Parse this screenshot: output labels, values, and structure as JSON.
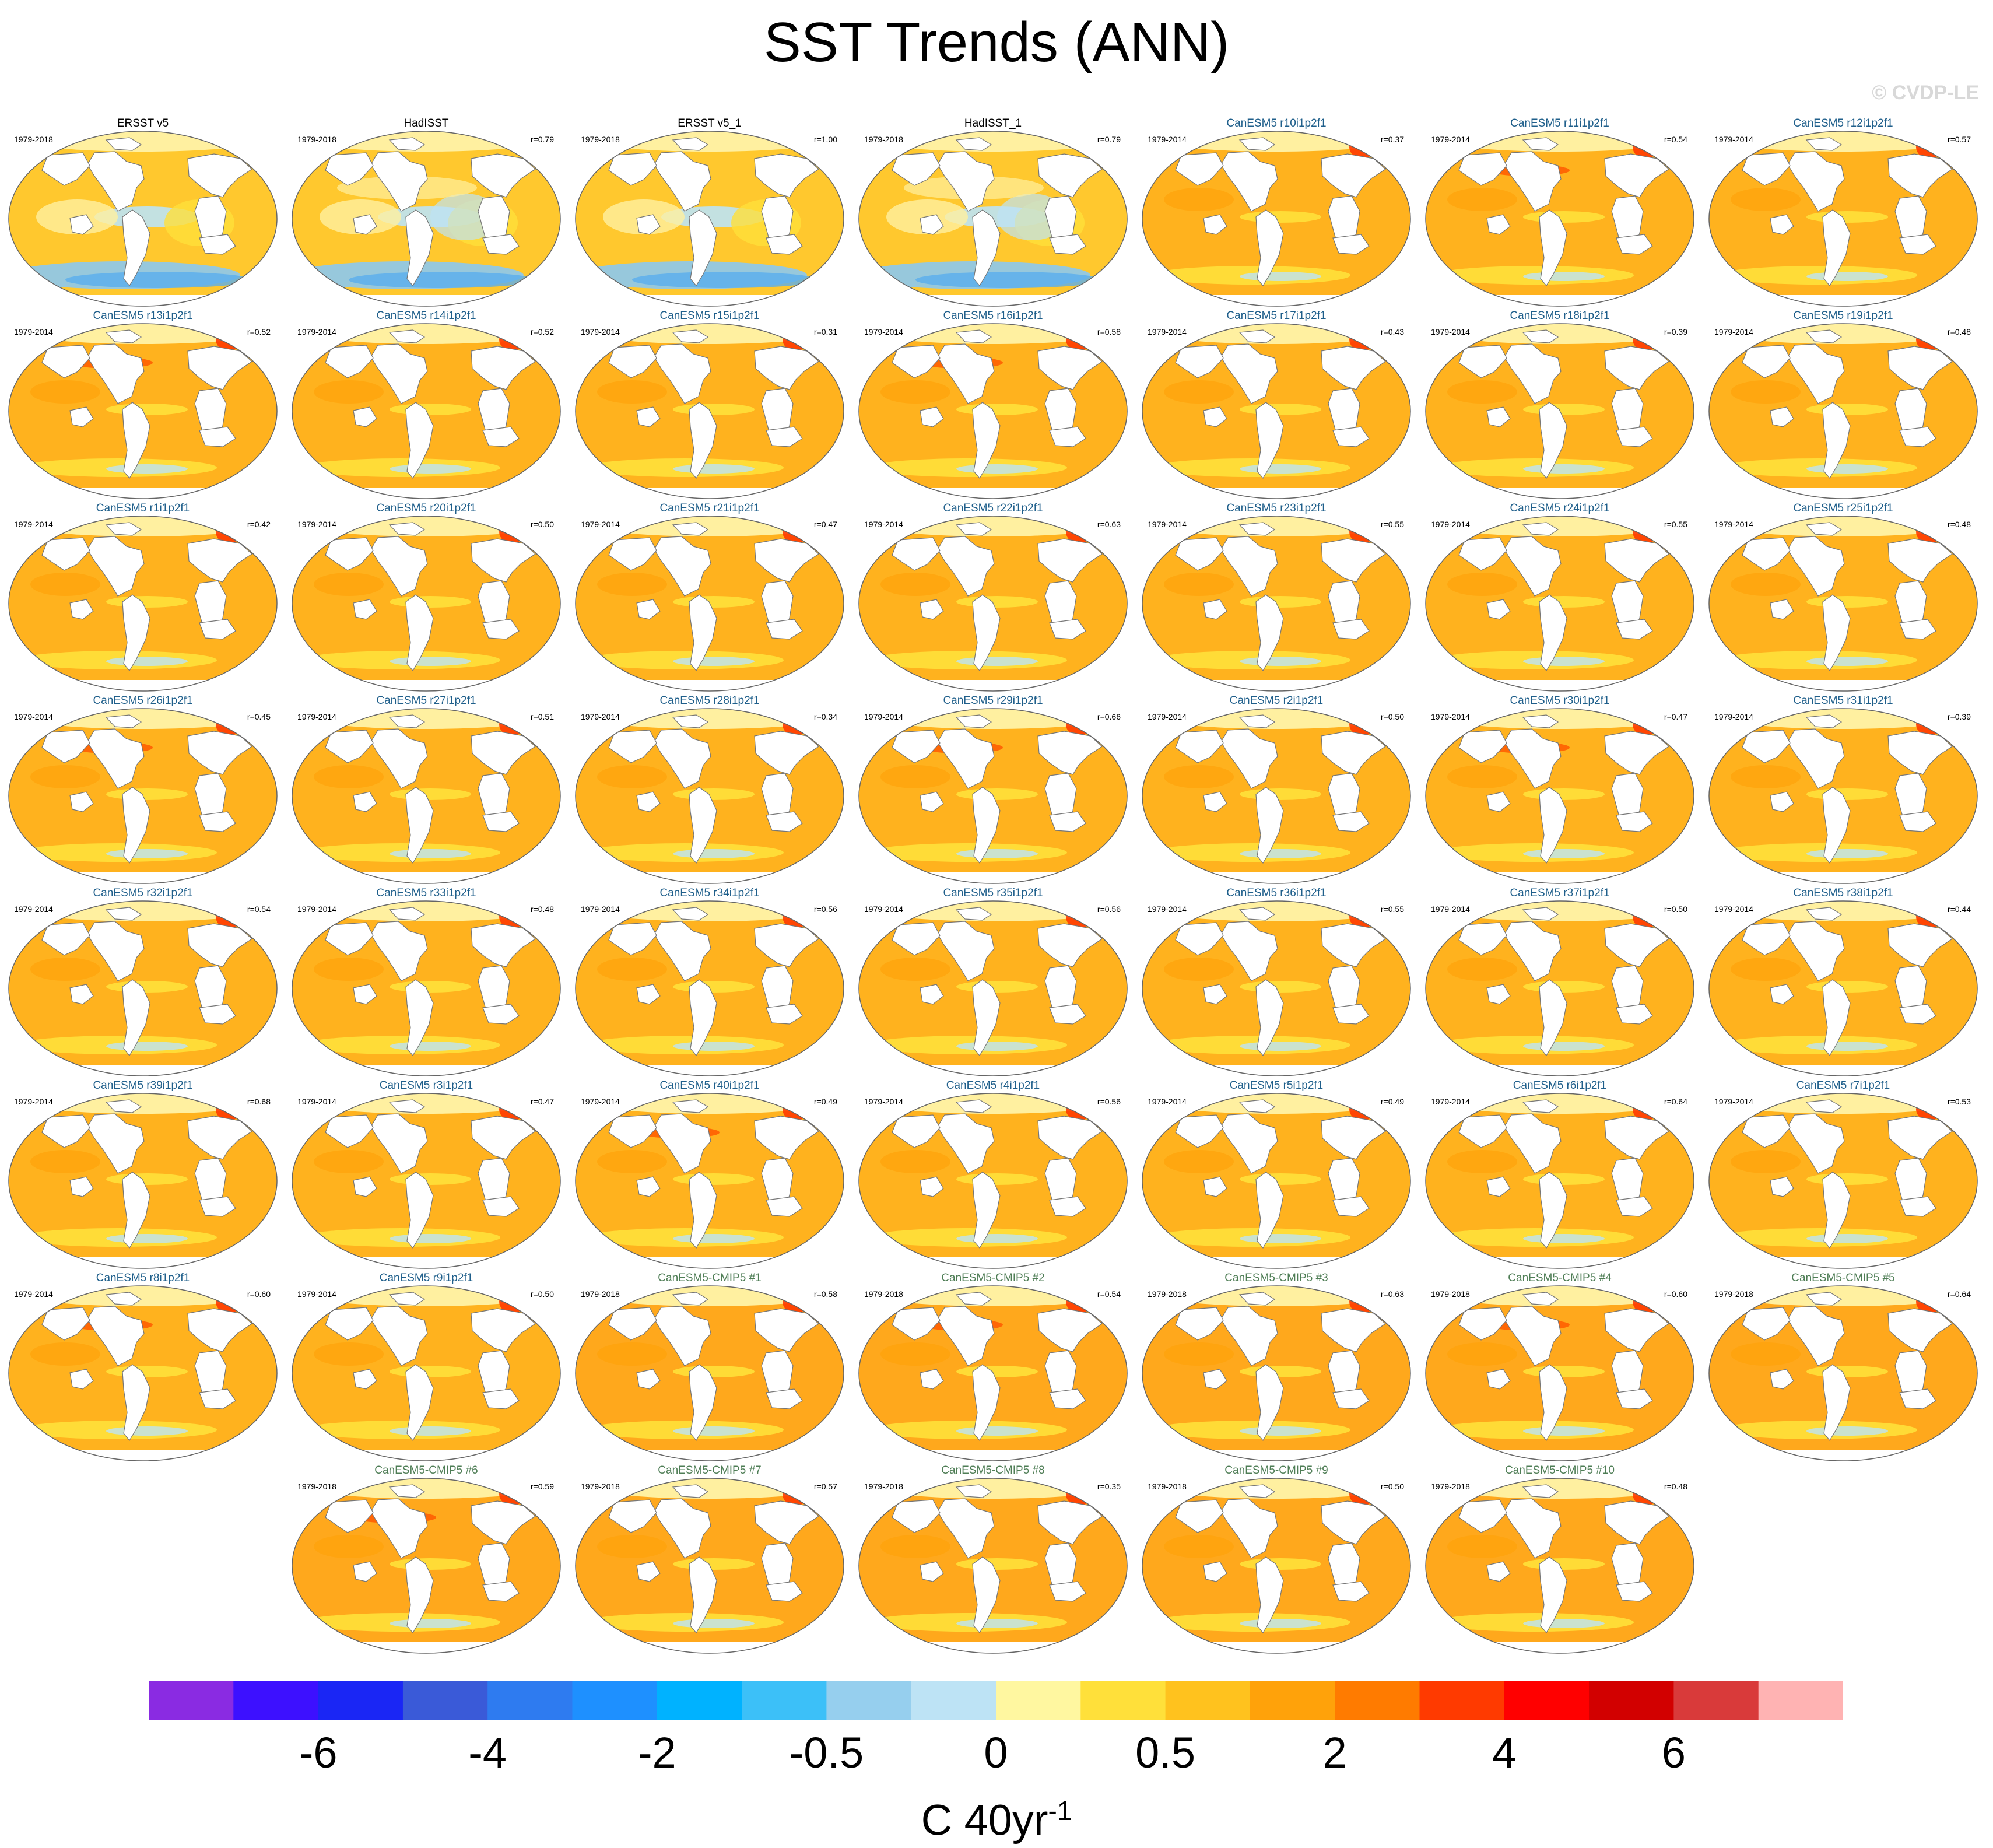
{
  "title": "SST Trends (ANN)",
  "watermark": "© CVDP-LE",
  "panels": [
    {
      "label": "ERSST v5",
      "years": "1979-2018",
      "corr": "",
      "kind": "obs",
      "pattern": "obs"
    },
    {
      "label": "HadISST",
      "years": "1979-2018",
      "corr": "r=0.79",
      "kind": "obs",
      "pattern": "obs2"
    },
    {
      "label": "ERSST v5_1",
      "years": "1979-2018",
      "corr": "r=1.00",
      "kind": "obs",
      "pattern": "obs"
    },
    {
      "label": "HadISST_1",
      "years": "1979-2018",
      "corr": "r=0.79",
      "kind": "obs",
      "pattern": "obs2"
    },
    {
      "label": "CanESM5 r10i1p2f1",
      "years": "1979-2014",
      "corr": "r=0.37",
      "kind": "model",
      "pattern": "model"
    },
    {
      "label": "CanESM5 r11i1p2f1",
      "years": "1979-2014",
      "corr": "r=0.54",
      "kind": "model",
      "pattern": "model2"
    },
    {
      "label": "CanESM5 r12i1p2f1",
      "years": "1979-2014",
      "corr": "r=0.57",
      "kind": "model",
      "pattern": "model"
    },
    {
      "label": "CanESM5 r13i1p2f1",
      "years": "1979-2014",
      "corr": "r=0.52",
      "kind": "model",
      "pattern": "model2"
    },
    {
      "label": "CanESM5 r14i1p2f1",
      "years": "1979-2014",
      "corr": "r=0.52",
      "kind": "model",
      "pattern": "model"
    },
    {
      "label": "CanESM5 r15i1p2f1",
      "years": "1979-2014",
      "corr": "r=0.31",
      "kind": "model",
      "pattern": "model"
    },
    {
      "label": "CanESM5 r16i1p2f1",
      "years": "1979-2014",
      "corr": "r=0.58",
      "kind": "model",
      "pattern": "model2"
    },
    {
      "label": "CanESM5 r17i1p2f1",
      "years": "1979-2014",
      "corr": "r=0.43",
      "kind": "model",
      "pattern": "model"
    },
    {
      "label": "CanESM5 r18i1p2f1",
      "years": "1979-2014",
      "corr": "r=0.39",
      "kind": "model",
      "pattern": "model"
    },
    {
      "label": "CanESM5 r19i1p2f1",
      "years": "1979-2014",
      "corr": "r=0.48",
      "kind": "model",
      "pattern": "model"
    },
    {
      "label": "CanESM5 r1i1p2f1",
      "years": "1979-2014",
      "corr": "r=0.42",
      "kind": "model",
      "pattern": "model"
    },
    {
      "label": "CanESM5 r20i1p2f1",
      "years": "1979-2014",
      "corr": "r=0.50",
      "kind": "model",
      "pattern": "model"
    },
    {
      "label": "CanESM5 r21i1p2f1",
      "years": "1979-2014",
      "corr": "r=0.47",
      "kind": "model",
      "pattern": "model"
    },
    {
      "label": "CanESM5 r22i1p2f1",
      "years": "1979-2014",
      "corr": "r=0.63",
      "kind": "model",
      "pattern": "model"
    },
    {
      "label": "CanESM5 r23i1p2f1",
      "years": "1979-2014",
      "corr": "r=0.55",
      "kind": "model",
      "pattern": "model"
    },
    {
      "label": "CanESM5 r24i1p2f1",
      "years": "1979-2014",
      "corr": "r=0.55",
      "kind": "model",
      "pattern": "model"
    },
    {
      "label": "CanESM5 r25i1p2f1",
      "years": "1979-2014",
      "corr": "r=0.48",
      "kind": "model",
      "pattern": "model"
    },
    {
      "label": "CanESM5 r26i1p2f1",
      "years": "1979-2014",
      "corr": "r=0.45",
      "kind": "model",
      "pattern": "model2"
    },
    {
      "label": "CanESM5 r27i1p2f1",
      "years": "1979-2014",
      "corr": "r=0.51",
      "kind": "model",
      "pattern": "model"
    },
    {
      "label": "CanESM5 r28i1p2f1",
      "years": "1979-2014",
      "corr": "r=0.34",
      "kind": "model",
      "pattern": "model"
    },
    {
      "label": "CanESM5 r29i1p2f1",
      "years": "1979-2014",
      "corr": "r=0.66",
      "kind": "model",
      "pattern": "model2"
    },
    {
      "label": "CanESM5 r2i1p2f1",
      "years": "1979-2014",
      "corr": "r=0.50",
      "kind": "model",
      "pattern": "model"
    },
    {
      "label": "CanESM5 r30i1p2f1",
      "years": "1979-2014",
      "corr": "r=0.47",
      "kind": "model",
      "pattern": "model2"
    },
    {
      "label": "CanESM5 r31i1p2f1",
      "years": "1979-2014",
      "corr": "r=0.39",
      "kind": "model",
      "pattern": "model"
    },
    {
      "label": "CanESM5 r32i1p2f1",
      "years": "1979-2014",
      "corr": "r=0.54",
      "kind": "model",
      "pattern": "model"
    },
    {
      "label": "CanESM5 r33i1p2f1",
      "years": "1979-2014",
      "corr": "r=0.48",
      "kind": "model",
      "pattern": "model"
    },
    {
      "label": "CanESM5 r34i1p2f1",
      "years": "1979-2014",
      "corr": "r=0.56",
      "kind": "model",
      "pattern": "model"
    },
    {
      "label": "CanESM5 r35i1p2f1",
      "years": "1979-2014",
      "corr": "r=0.56",
      "kind": "model",
      "pattern": "model"
    },
    {
      "label": "CanESM5 r36i1p2f1",
      "years": "1979-2014",
      "corr": "r=0.55",
      "kind": "model",
      "pattern": "model"
    },
    {
      "label": "CanESM5 r37i1p2f1",
      "years": "1979-2014",
      "corr": "r=0.50",
      "kind": "model",
      "pattern": "model"
    },
    {
      "label": "CanESM5 r38i1p2f1",
      "years": "1979-2014",
      "corr": "r=0.44",
      "kind": "model",
      "pattern": "model"
    },
    {
      "label": "CanESM5 r39i1p2f1",
      "years": "1979-2014",
      "corr": "r=0.68",
      "kind": "model",
      "pattern": "model"
    },
    {
      "label": "CanESM5 r3i1p2f1",
      "years": "1979-2014",
      "corr": "r=0.47",
      "kind": "model",
      "pattern": "model"
    },
    {
      "label": "CanESM5 r40i1p2f1",
      "years": "1979-2014",
      "corr": "r=0.49",
      "kind": "model",
      "pattern": "model2"
    },
    {
      "label": "CanESM5 r4i1p2f1",
      "years": "1979-2014",
      "corr": "r=0.56",
      "kind": "model",
      "pattern": "model"
    },
    {
      "label": "CanESM5 r5i1p2f1",
      "years": "1979-2014",
      "corr": "r=0.49",
      "kind": "model",
      "pattern": "model"
    },
    {
      "label": "CanESM5 r6i1p2f1",
      "years": "1979-2014",
      "corr": "r=0.64",
      "kind": "model",
      "pattern": "model"
    },
    {
      "label": "CanESM5 r7i1p2f1",
      "years": "1979-2014",
      "corr": "r=0.53",
      "kind": "model",
      "pattern": "model"
    },
    {
      "label": "CanESM5 r8i1p2f1",
      "years": "1979-2014",
      "corr": "r=0.60",
      "kind": "model",
      "pattern": "model2"
    },
    {
      "label": "CanESM5 r9i1p2f1",
      "years": "1979-2014",
      "corr": "r=0.50",
      "kind": "model",
      "pattern": "model"
    },
    {
      "label": "CanESM5-CMIP5 #1",
      "years": "1979-2018",
      "corr": "r=0.58",
      "kind": "cmip",
      "pattern": "cmip"
    },
    {
      "label": "CanESM5-CMIP5 #2",
      "years": "1979-2018",
      "corr": "r=0.54",
      "kind": "cmip",
      "pattern": "cmip2"
    },
    {
      "label": "CanESM5-CMIP5 #3",
      "years": "1979-2018",
      "corr": "r=0.63",
      "kind": "cmip",
      "pattern": "cmip"
    },
    {
      "label": "CanESM5-CMIP5 #4",
      "years": "1979-2018",
      "corr": "r=0.60",
      "kind": "cmip",
      "pattern": "cmip2"
    },
    {
      "label": "CanESM5-CMIP5 #5",
      "years": "1979-2018",
      "corr": "r=0.64",
      "kind": "cmip",
      "pattern": "cmip"
    },
    {
      "label": "CanESM5-CMIP5 #6",
      "years": "1979-2018",
      "corr": "r=0.59",
      "kind": "cmip",
      "pattern": "cmip2"
    },
    {
      "label": "CanESM5-CMIP5 #7",
      "years": "1979-2018",
      "corr": "r=0.57",
      "kind": "cmip",
      "pattern": "cmip"
    },
    {
      "label": "CanESM5-CMIP5 #8",
      "years": "1979-2018",
      "corr": "r=0.35",
      "kind": "cmip",
      "pattern": "cmip"
    },
    {
      "label": "CanESM5-CMIP5 #9",
      "years": "1979-2018",
      "corr": "r=0.50",
      "kind": "cmip",
      "pattern": "cmip"
    },
    {
      "label": "CanESM5-CMIP5 #10",
      "years": "1979-2018",
      "corr": "r=0.48",
      "kind": "cmip",
      "pattern": "cmip"
    }
  ],
  "colorbar": {
    "colors": [
      "#8a2be2",
      "#3d10ff",
      "#1a26f5",
      "#3a5ad8",
      "#2e7bf0",
      "#1e90ff",
      "#00b2ff",
      "#3cc0f8",
      "#96cfee",
      "#bde3f5",
      "#fff7a0",
      "#ffe03a",
      "#ffc21e",
      "#ffa20a",
      "#ff7b00",
      "#ff3a00",
      "#ff0000",
      "#d20000",
      "#d93a3a",
      "#ffb3b3"
    ],
    "tick_labels": [
      "-6",
      "-4",
      "-2",
      "-0.5",
      "0",
      "0.5",
      "2",
      "4",
      "6"
    ],
    "units": "C 40yr",
    "units_exponent": "-1"
  }
}
